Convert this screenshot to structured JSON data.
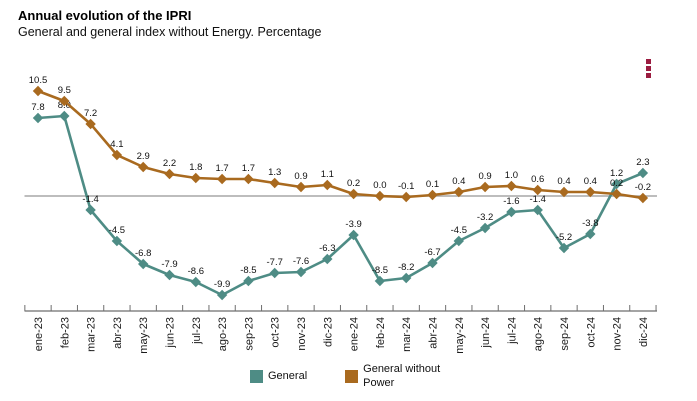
{
  "header": {
    "title": "Annual evolution of the IPRI",
    "subtitle": "General and general index without Energy. Percentage"
  },
  "menu": {
    "icon": "kebab-menu-icon",
    "color": "#9B1C40"
  },
  "legend": {
    "items": [
      {
        "label": "General",
        "color": "#4E8C85"
      },
      {
        "label": "General without Power",
        "color": "#A96A1F"
      }
    ]
  },
  "chart_data": {
    "type": "line",
    "title": "Annual evolution of the IPRI",
    "subtitle": "General and general index without Energy. Percentage",
    "xlabel": "",
    "ylabel": "",
    "ylim": [
      -12,
      13
    ],
    "zero_line": true,
    "grid": false,
    "data_labels": true,
    "marker": "diamond",
    "x_tick_rotation": -90,
    "legend_position": "bottom",
    "categories": [
      "ene-23",
      "feb-23",
      "mar-23",
      "abr-23",
      "may-23",
      "jun-23",
      "jul-23",
      "ago-23",
      "sep-23",
      "oct-23",
      "nov-23",
      "dic-23",
      "ene-24",
      "feb-24",
      "mar-24",
      "abr-24",
      "may-24",
      "jun-24",
      "jul-24",
      "ago-24",
      "sep-24",
      "oct-24",
      "nov-24",
      "dic-24"
    ],
    "series": [
      {
        "name": "General",
        "color": "#4E8C85",
        "values": [
          7.8,
          8.0,
          -1.4,
          -4.5,
          -6.8,
          -7.9,
          -8.6,
          -9.9,
          -8.5,
          -7.7,
          -7.6,
          -6.3,
          -3.9,
          -8.5,
          -8.2,
          -6.7,
          -4.5,
          -3.2,
          -1.6,
          -1.4,
          -5.2,
          -3.8,
          1.2,
          2.3
        ]
      },
      {
        "name": "General without Power",
        "color": "#A96A1F",
        "values": [
          10.5,
          9.5,
          7.2,
          4.1,
          2.9,
          2.2,
          1.8,
          1.7,
          1.7,
          1.3,
          0.9,
          1.1,
          0.2,
          0.0,
          -0.1,
          0.1,
          0.4,
          0.9,
          1.0,
          0.6,
          0.4,
          0.4,
          0.2,
          -0.2
        ]
      }
    ]
  }
}
